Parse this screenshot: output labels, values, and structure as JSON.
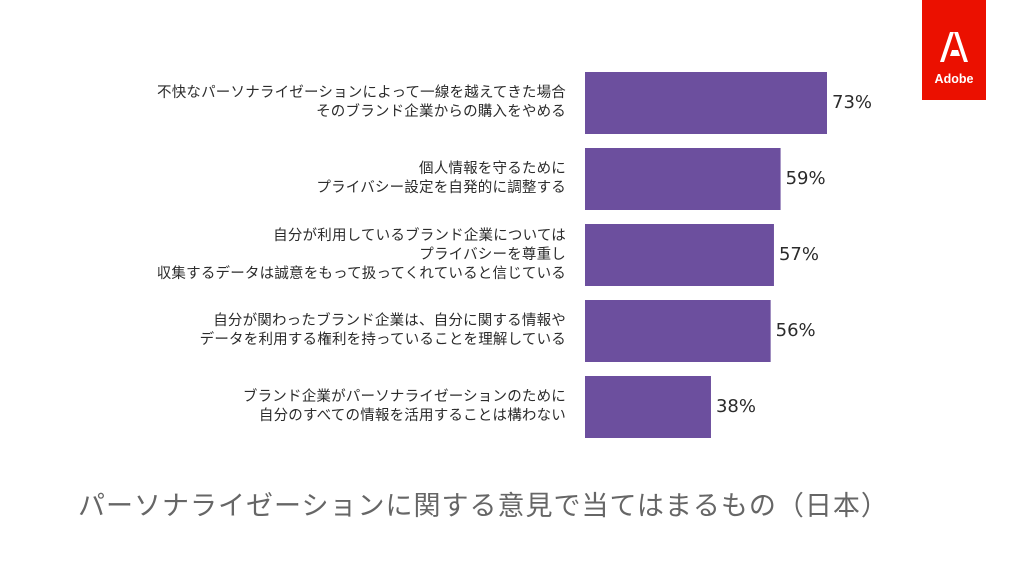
{
  "brand": {
    "name": "Adobe",
    "color": "#eb1000"
  },
  "chart_data": {
    "type": "bar",
    "orientation": "horizontal",
    "title": "パーソナライゼーションに関する意見で当てはまるもの（日本）",
    "bar_color": "#6c4f9e",
    "xlim": [
      0,
      100
    ],
    "categories": [
      [
        "不快なパーソナライゼーションによって一線を越えてきた場合",
        "そのブランド企業からの購入をやめる"
      ],
      [
        "個人情報を守るために",
        "プライバシー設定を自発的に調整する"
      ],
      [
        "自分が利用しているブランド企業については",
        "プライバシーを尊重し",
        "収集するデータは誠意をもって扱ってくれていると信じている"
      ],
      [
        "自分が関わったブランド企業は、自分に関する情報や",
        "データを利用する権利を持っていることを理解している"
      ],
      [
        "ブランド企業がパーソナライゼーションのために",
        "自分のすべての情報を活用することは構わない"
      ]
    ],
    "values": [
      73,
      59,
      57,
      56,
      38
    ],
    "value_labels": [
      "73%",
      "59%",
      "57%",
      "56%",
      "38%"
    ]
  }
}
